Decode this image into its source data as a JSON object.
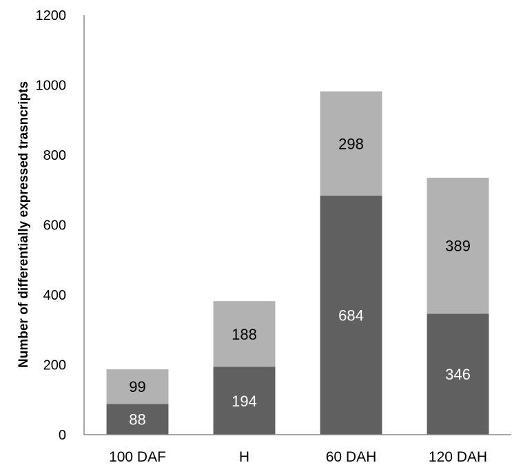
{
  "chart_data": {
    "type": "bar",
    "stacked": true,
    "categories": [
      "100 DAF",
      "H",
      "60 DAH",
      "120 DAH"
    ],
    "series": [
      {
        "color": "#606060",
        "label_color": "#ffffff",
        "values": [
          88,
          194,
          684,
          346
        ]
      },
      {
        "color": "#b2b2b2",
        "label_color": "#000000",
        "values": [
          99,
          188,
          298,
          389
        ]
      }
    ],
    "title": "",
    "xlabel": "",
    "ylabel": "Number of differentially expressed trasncripts",
    "ylim": [
      0,
      1200
    ],
    "yticks": [
      0,
      200,
      400,
      600,
      800,
      1000,
      1200
    ],
    "grid": false,
    "legend": "none"
  }
}
